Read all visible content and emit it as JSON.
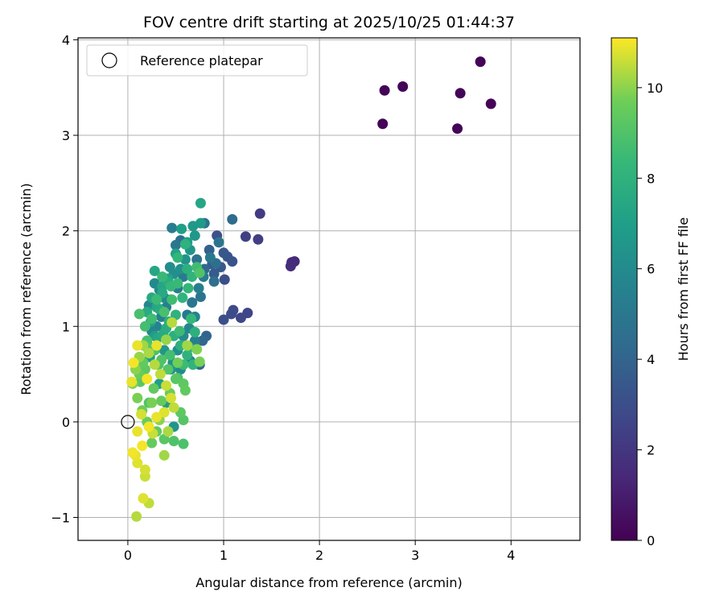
{
  "chart_data": {
    "type": "scatter",
    "title": "FOV centre drift starting at 2025/10/25 01:44:37",
    "xlabel": "Angular distance from reference (arcmin)",
    "ylabel": "Rotation from reference (arcmin)",
    "xlim": [
      -0.52,
      4.72
    ],
    "ylim": [
      -1.24,
      4.02
    ],
    "xticks": [
      0,
      1,
      2,
      3,
      4
    ],
    "yticks": [
      -1,
      0,
      1,
      2,
      3,
      4
    ],
    "grid": true,
    "legend": {
      "placement": "top-left",
      "entries": [
        "Reference platepar"
      ]
    },
    "reference_point": {
      "name": "Reference platepar",
      "x": 0,
      "y": 0
    },
    "colorbar": {
      "label": "Hours from first FF file",
      "colormap": "viridis",
      "range": [
        0,
        11.1
      ],
      "ticks": [
        0,
        2,
        4,
        6,
        8,
        10
      ]
    },
    "points": [
      {
        "x": 2.68,
        "y": 3.47,
        "c": 0.1
      },
      {
        "x": 2.87,
        "y": 3.51,
        "c": 0.1
      },
      {
        "x": 2.66,
        "y": 3.12,
        "c": 0.1
      },
      {
        "x": 3.47,
        "y": 3.44,
        "c": 0.1
      },
      {
        "x": 3.68,
        "y": 3.77,
        "c": 0.1
      },
      {
        "x": 3.79,
        "y": 3.33,
        "c": 0.1
      },
      {
        "x": 3.44,
        "y": 3.07,
        "c": 0.1
      },
      {
        "x": 1.71,
        "y": 1.67,
        "c": 1.5
      },
      {
        "x": 1.74,
        "y": 1.68,
        "c": 1.5
      },
      {
        "x": 1.7,
        "y": 1.63,
        "c": 1.6
      },
      {
        "x": 1.38,
        "y": 2.18,
        "c": 2.2
      },
      {
        "x": 1.23,
        "y": 1.94,
        "c": 2.4
      },
      {
        "x": 1.36,
        "y": 1.91,
        "c": 2.3
      },
      {
        "x": 1.25,
        "y": 1.14,
        "c": 2.6
      },
      {
        "x": 1.18,
        "y": 1.09,
        "c": 2.7
      },
      {
        "x": 1.1,
        "y": 1.17,
        "c": 2.8
      },
      {
        "x": 1.08,
        "y": 1.13,
        "c": 2.9
      },
      {
        "x": 1.0,
        "y": 1.07,
        "c": 3.0
      },
      {
        "x": 1.01,
        "y": 1.49,
        "c": 3.0
      },
      {
        "x": 0.93,
        "y": 1.95,
        "c": 3.1
      },
      {
        "x": 1.09,
        "y": 1.68,
        "c": 3.2
      },
      {
        "x": 1.04,
        "y": 1.73,
        "c": 3.3
      },
      {
        "x": 1.0,
        "y": 1.77,
        "c": 3.4
      },
      {
        "x": 0.97,
        "y": 1.62,
        "c": 3.5
      },
      {
        "x": 0.9,
        "y": 1.55,
        "c": 3.6
      },
      {
        "x": 0.88,
        "y": 1.65,
        "c": 3.7
      },
      {
        "x": 0.85,
        "y": 1.8,
        "c": 3.8
      },
      {
        "x": 0.82,
        "y": 0.9,
        "c": 4.0
      },
      {
        "x": 0.78,
        "y": 0.85,
        "c": 4.1
      },
      {
        "x": 0.75,
        "y": 0.6,
        "c": 4.2
      },
      {
        "x": 0.8,
        "y": 1.6,
        "c": 4.2
      },
      {
        "x": 1.09,
        "y": 2.12,
        "c": 4.4
      },
      {
        "x": 0.92,
        "y": 1.66,
        "c": 4.5
      },
      {
        "x": 0.9,
        "y": 1.47,
        "c": 4.6
      },
      {
        "x": 0.8,
        "y": 2.08,
        "c": 4.7
      },
      {
        "x": 0.72,
        "y": 1.7,
        "c": 4.7
      },
      {
        "x": 0.76,
        "y": 1.31,
        "c": 4.8
      },
      {
        "x": 0.67,
        "y": 1.25,
        "c": 4.9
      },
      {
        "x": 0.62,
        "y": 1.12,
        "c": 5.0
      },
      {
        "x": 0.55,
        "y": 1.9,
        "c": 4.5
      },
      {
        "x": 0.5,
        "y": 1.85,
        "c": 5.0
      },
      {
        "x": 0.46,
        "y": 2.03,
        "c": 5.3
      },
      {
        "x": 0.58,
        "y": 1.52,
        "c": 5.1
      },
      {
        "x": 0.52,
        "y": 1.4,
        "c": 5.2
      },
      {
        "x": 0.45,
        "y": 1.28,
        "c": 5.3
      },
      {
        "x": 0.4,
        "y": 1.2,
        "c": 5.4
      },
      {
        "x": 0.35,
        "y": 1.1,
        "c": 5.5
      },
      {
        "x": 0.3,
        "y": 1.0,
        "c": 5.6
      },
      {
        "x": 0.25,
        "y": 0.95,
        "c": 5.7
      },
      {
        "x": 0.22,
        "y": 1.22,
        "c": 5.8
      },
      {
        "x": 0.28,
        "y": 1.45,
        "c": 5.9
      },
      {
        "x": 0.33,
        "y": 1.38,
        "c": 6.0
      },
      {
        "x": 0.38,
        "y": 1.3,
        "c": 6.0
      },
      {
        "x": 0.44,
        "y": 1.62,
        "c": 6.1
      },
      {
        "x": 0.48,
        "y": 1.55,
        "c": 6.2
      },
      {
        "x": 0.55,
        "y": 1.6,
        "c": 6.3
      },
      {
        "x": 0.6,
        "y": 1.7,
        "c": 6.4
      },
      {
        "x": 0.65,
        "y": 1.8,
        "c": 6.5
      },
      {
        "x": 0.7,
        "y": 1.95,
        "c": 6.6
      },
      {
        "x": 0.68,
        "y": 2.05,
        "c": 6.7
      },
      {
        "x": 0.76,
        "y": 2.08,
        "c": 6.8
      },
      {
        "x": 0.62,
        "y": 1.88,
        "c": 6.9
      },
      {
        "x": 0.56,
        "y": 2.02,
        "c": 7.0
      },
      {
        "x": 0.5,
        "y": 1.76,
        "c": 7.1
      },
      {
        "x": 0.42,
        "y": 1.5,
        "c": 7.2
      },
      {
        "x": 0.36,
        "y": 1.42,
        "c": 7.3
      },
      {
        "x": 0.28,
        "y": 1.58,
        "c": 7.4
      },
      {
        "x": 0.25,
        "y": 1.3,
        "c": 7.5
      },
      {
        "x": 0.2,
        "y": 1.15,
        "c": 7.6
      },
      {
        "x": 0.33,
        "y": 1.18,
        "c": 7.6
      },
      {
        "x": 0.4,
        "y": 0.98,
        "c": 7.7
      },
      {
        "x": 0.48,
        "y": 0.9,
        "c": 7.8
      },
      {
        "x": 0.55,
        "y": 0.8,
        "c": 7.9
      },
      {
        "x": 0.62,
        "y": 0.7,
        "c": 8.0
      },
      {
        "x": 0.68,
        "y": 0.6,
        "c": 8.1
      },
      {
        "x": 0.76,
        "y": 2.29,
        "c": 7.4
      },
      {
        "x": 0.6,
        "y": 1.86,
        "c": 8.0
      },
      {
        "x": 0.52,
        "y": 1.72,
        "c": 8.2
      },
      {
        "x": 0.45,
        "y": 1.42,
        "c": 8.3
      },
      {
        "x": 0.36,
        "y": 1.52,
        "c": 8.4
      },
      {
        "x": 0.3,
        "y": 1.28,
        "c": 8.5
      },
      {
        "x": 0.25,
        "y": 1.08,
        "c": 8.6
      },
      {
        "x": 0.18,
        "y": 1.0,
        "c": 8.7
      },
      {
        "x": 0.12,
        "y": 1.13,
        "c": 8.8
      },
      {
        "x": 0.2,
        "y": 0.85,
        "c": 8.8
      },
      {
        "x": 0.28,
        "y": 0.75,
        "c": 8.9
      },
      {
        "x": 0.35,
        "y": 0.65,
        "c": 9.0
      },
      {
        "x": 0.42,
        "y": 0.55,
        "c": 9.1
      },
      {
        "x": 0.5,
        "y": 0.45,
        "c": 9.2
      },
      {
        "x": 0.58,
        "y": 0.4,
        "c": 9.3
      },
      {
        "x": 0.6,
        "y": 0.33,
        "c": 9.4
      },
      {
        "x": 0.55,
        "y": 0.1,
        "c": 9.3
      },
      {
        "x": 0.58,
        "y": 0.02,
        "c": 9.1
      },
      {
        "x": 0.48,
        "y": -0.2,
        "c": 9.0
      },
      {
        "x": 0.58,
        "y": -0.23,
        "c": 8.9
      },
      {
        "x": 0.38,
        "y": -0.18,
        "c": 9.2
      },
      {
        "x": 0.3,
        "y": -0.1,
        "c": 9.4
      },
      {
        "x": 0.25,
        "y": -0.22,
        "c": 9.5
      },
      {
        "x": 0.2,
        "y": 0.0,
        "c": 9.6
      },
      {
        "x": 0.15,
        "y": 0.12,
        "c": 9.7
      },
      {
        "x": 0.1,
        "y": 0.25,
        "c": 9.8
      },
      {
        "x": 0.05,
        "y": 0.4,
        "c": 9.9
      },
      {
        "x": 0.08,
        "y": 0.55,
        "c": 10.0
      },
      {
        "x": 0.12,
        "y": 0.68,
        "c": 10.1
      },
      {
        "x": 0.16,
        "y": 0.8,
        "c": 10.2
      },
      {
        "x": 0.22,
        "y": 0.72,
        "c": 10.3
      },
      {
        "x": 0.28,
        "y": 0.6,
        "c": 10.4
      },
      {
        "x": 0.34,
        "y": 0.5,
        "c": 10.5
      },
      {
        "x": 0.4,
        "y": 0.38,
        "c": 10.6
      },
      {
        "x": 0.45,
        "y": 0.25,
        "c": 10.7
      },
      {
        "x": 0.38,
        "y": 0.1,
        "c": 10.8
      },
      {
        "x": 0.3,
        "y": 0.05,
        "c": 10.9
      },
      {
        "x": 0.22,
        "y": -0.05,
        "c": 11.0
      },
      {
        "x": 0.15,
        "y": -0.25,
        "c": 11.0
      },
      {
        "x": 0.08,
        "y": -0.35,
        "c": 10.9
      },
      {
        "x": 0.05,
        "y": -0.32,
        "c": 11.0
      },
      {
        "x": 0.1,
        "y": -0.43,
        "c": 10.8
      },
      {
        "x": 0.18,
        "y": -0.5,
        "c": 10.7
      },
      {
        "x": 0.18,
        "y": -0.57,
        "c": 10.6
      },
      {
        "x": 0.16,
        "y": -0.8,
        "c": 10.8
      },
      {
        "x": 0.22,
        "y": -0.85,
        "c": 10.5
      },
      {
        "x": 0.09,
        "y": -0.99,
        "c": 10.4
      },
      {
        "x": 0.38,
        "y": -0.35,
        "c": 10.2
      },
      {
        "x": 0.04,
        "y": 0.42,
        "c": 10.9
      },
      {
        "x": 0.06,
        "y": 0.62,
        "c": 11.0
      },
      {
        "x": 0.1,
        "y": 0.8,
        "c": 10.9
      },
      {
        "x": 0.2,
        "y": 0.45,
        "c": 11.0
      },
      {
        "x": 0.3,
        "y": 0.8,
        "c": 10.9
      },
      {
        "x": 0.46,
        "y": 1.04,
        "c": 10.4
      },
      {
        "x": 0.4,
        "y": 0.86,
        "c": 10.1
      },
      {
        "x": 0.62,
        "y": 0.8,
        "c": 10.2
      },
      {
        "x": 0.72,
        "y": 0.76,
        "c": 9.9
      },
      {
        "x": 0.75,
        "y": 0.63,
        "c": 9.8
      },
      {
        "x": 0.52,
        "y": 0.62,
        "c": 9.7
      },
      {
        "x": 0.44,
        "y": 0.3,
        "c": 9.6
      },
      {
        "x": 0.35,
        "y": 0.22,
        "c": 9.5
      },
      {
        "x": 0.27,
        "y": 0.35,
        "c": 9.4
      },
      {
        "x": 0.18,
        "y": 0.55,
        "c": 9.3
      },
      {
        "x": 0.13,
        "y": 0.42,
        "c": 9.2
      },
      {
        "x": 0.22,
        "y": 0.2,
        "c": 9.0
      },
      {
        "x": 0.32,
        "y": 0.6,
        "c": 8.9
      },
      {
        "x": 0.44,
        "y": 0.7,
        "c": 8.7
      },
      {
        "x": 0.54,
        "y": 0.95,
        "c": 8.5
      },
      {
        "x": 0.66,
        "y": 1.08,
        "c": 8.3
      },
      {
        "x": 0.72,
        "y": 1.62,
        "c": 8.6
      },
      {
        "x": 0.63,
        "y": 1.4,
        "c": 8.2
      },
      {
        "x": 0.57,
        "y": 1.3,
        "c": 8.1
      },
      {
        "x": 0.5,
        "y": 1.12,
        "c": 8.0
      },
      {
        "x": 0.43,
        "y": 1.05,
        "c": 7.8
      },
      {
        "x": 0.37,
        "y": 0.92,
        "c": 7.6
      },
      {
        "x": 0.31,
        "y": 0.88,
        "c": 7.4
      },
      {
        "x": 0.27,
        "y": 0.78,
        "c": 7.2
      },
      {
        "x": 0.23,
        "y": 0.68,
        "c": 7.0
      },
      {
        "x": 0.33,
        "y": 0.4,
        "c": 7.0
      },
      {
        "x": 0.4,
        "y": 0.2,
        "c": 6.8
      },
      {
        "x": 0.48,
        "y": -0.05,
        "c": 6.5
      },
      {
        "x": 0.45,
        "y": 0.55,
        "c": 6.5
      },
      {
        "x": 0.52,
        "y": 0.75,
        "c": 6.2
      },
      {
        "x": 0.58,
        "y": 0.9,
        "c": 6.0
      },
      {
        "x": 0.64,
        "y": 0.98,
        "c": 5.8
      },
      {
        "x": 0.7,
        "y": 1.1,
        "c": 5.6
      },
      {
        "x": 0.74,
        "y": 1.4,
        "c": 5.4
      },
      {
        "x": 0.79,
        "y": 1.52,
        "c": 5.2
      },
      {
        "x": 0.86,
        "y": 1.72,
        "c": 5.0
      },
      {
        "x": 0.95,
        "y": 1.88,
        "c": 4.8
      },
      {
        "x": 0.7,
        "y": 0.85,
        "c": 5.4
      },
      {
        "x": 0.65,
        "y": 0.64,
        "c": 5.6
      },
      {
        "x": 0.55,
        "y": 0.55,
        "c": 5.9
      },
      {
        "x": 0.47,
        "y": 0.62,
        "c": 6.3
      },
      {
        "x": 0.38,
        "y": 0.75,
        "c": 6.6
      },
      {
        "x": 0.28,
        "y": 0.9,
        "c": 6.9
      },
      {
        "x": 0.24,
        "y": 1.05,
        "c": 7.1
      },
      {
        "x": 0.3,
        "y": 1.2,
        "c": 7.3
      },
      {
        "x": 0.36,
        "y": 1.35,
        "c": 7.5
      },
      {
        "x": 0.42,
        "y": 1.46,
        "c": 7.7
      },
      {
        "x": 0.62,
        "y": 1.6,
        "c": 7.9
      },
      {
        "x": 0.67,
        "y": 1.52,
        "c": 8.1
      },
      {
        "x": 0.75,
        "y": 1.56,
        "c": 9.0
      },
      {
        "x": 0.52,
        "y": 1.45,
        "c": 8.4
      },
      {
        "x": 0.46,
        "y": 1.28,
        "c": 8.6
      },
      {
        "x": 0.38,
        "y": 1.15,
        "c": 8.8
      },
      {
        "x": 0.2,
        "y": 0.78,
        "c": 9.1
      },
      {
        "x": 0.16,
        "y": 0.62,
        "c": 9.4
      },
      {
        "x": 0.12,
        "y": 0.5,
        "c": 9.6
      },
      {
        "x": 0.25,
        "y": 0.2,
        "c": 9.8
      },
      {
        "x": 0.33,
        "y": 0.02,
        "c": 10.0
      },
      {
        "x": 0.42,
        "y": -0.1,
        "c": 10.3
      },
      {
        "x": 0.48,
        "y": 0.15,
        "c": 10.5
      },
      {
        "x": 0.14,
        "y": 0.08,
        "c": 10.7
      },
      {
        "x": 0.1,
        "y": -0.1,
        "c": 10.9
      },
      {
        "x": 0.26,
        "y": -0.12,
        "c": 10.6
      },
      {
        "x": 0.52,
        "y": 0.46,
        "c": 8.8
      },
      {
        "x": 0.58,
        "y": 0.6,
        "c": 8.5
      },
      {
        "x": 0.64,
        "y": 0.78,
        "c": 8.2
      },
      {
        "x": 0.7,
        "y": 0.94,
        "c": 7.9
      }
    ]
  }
}
